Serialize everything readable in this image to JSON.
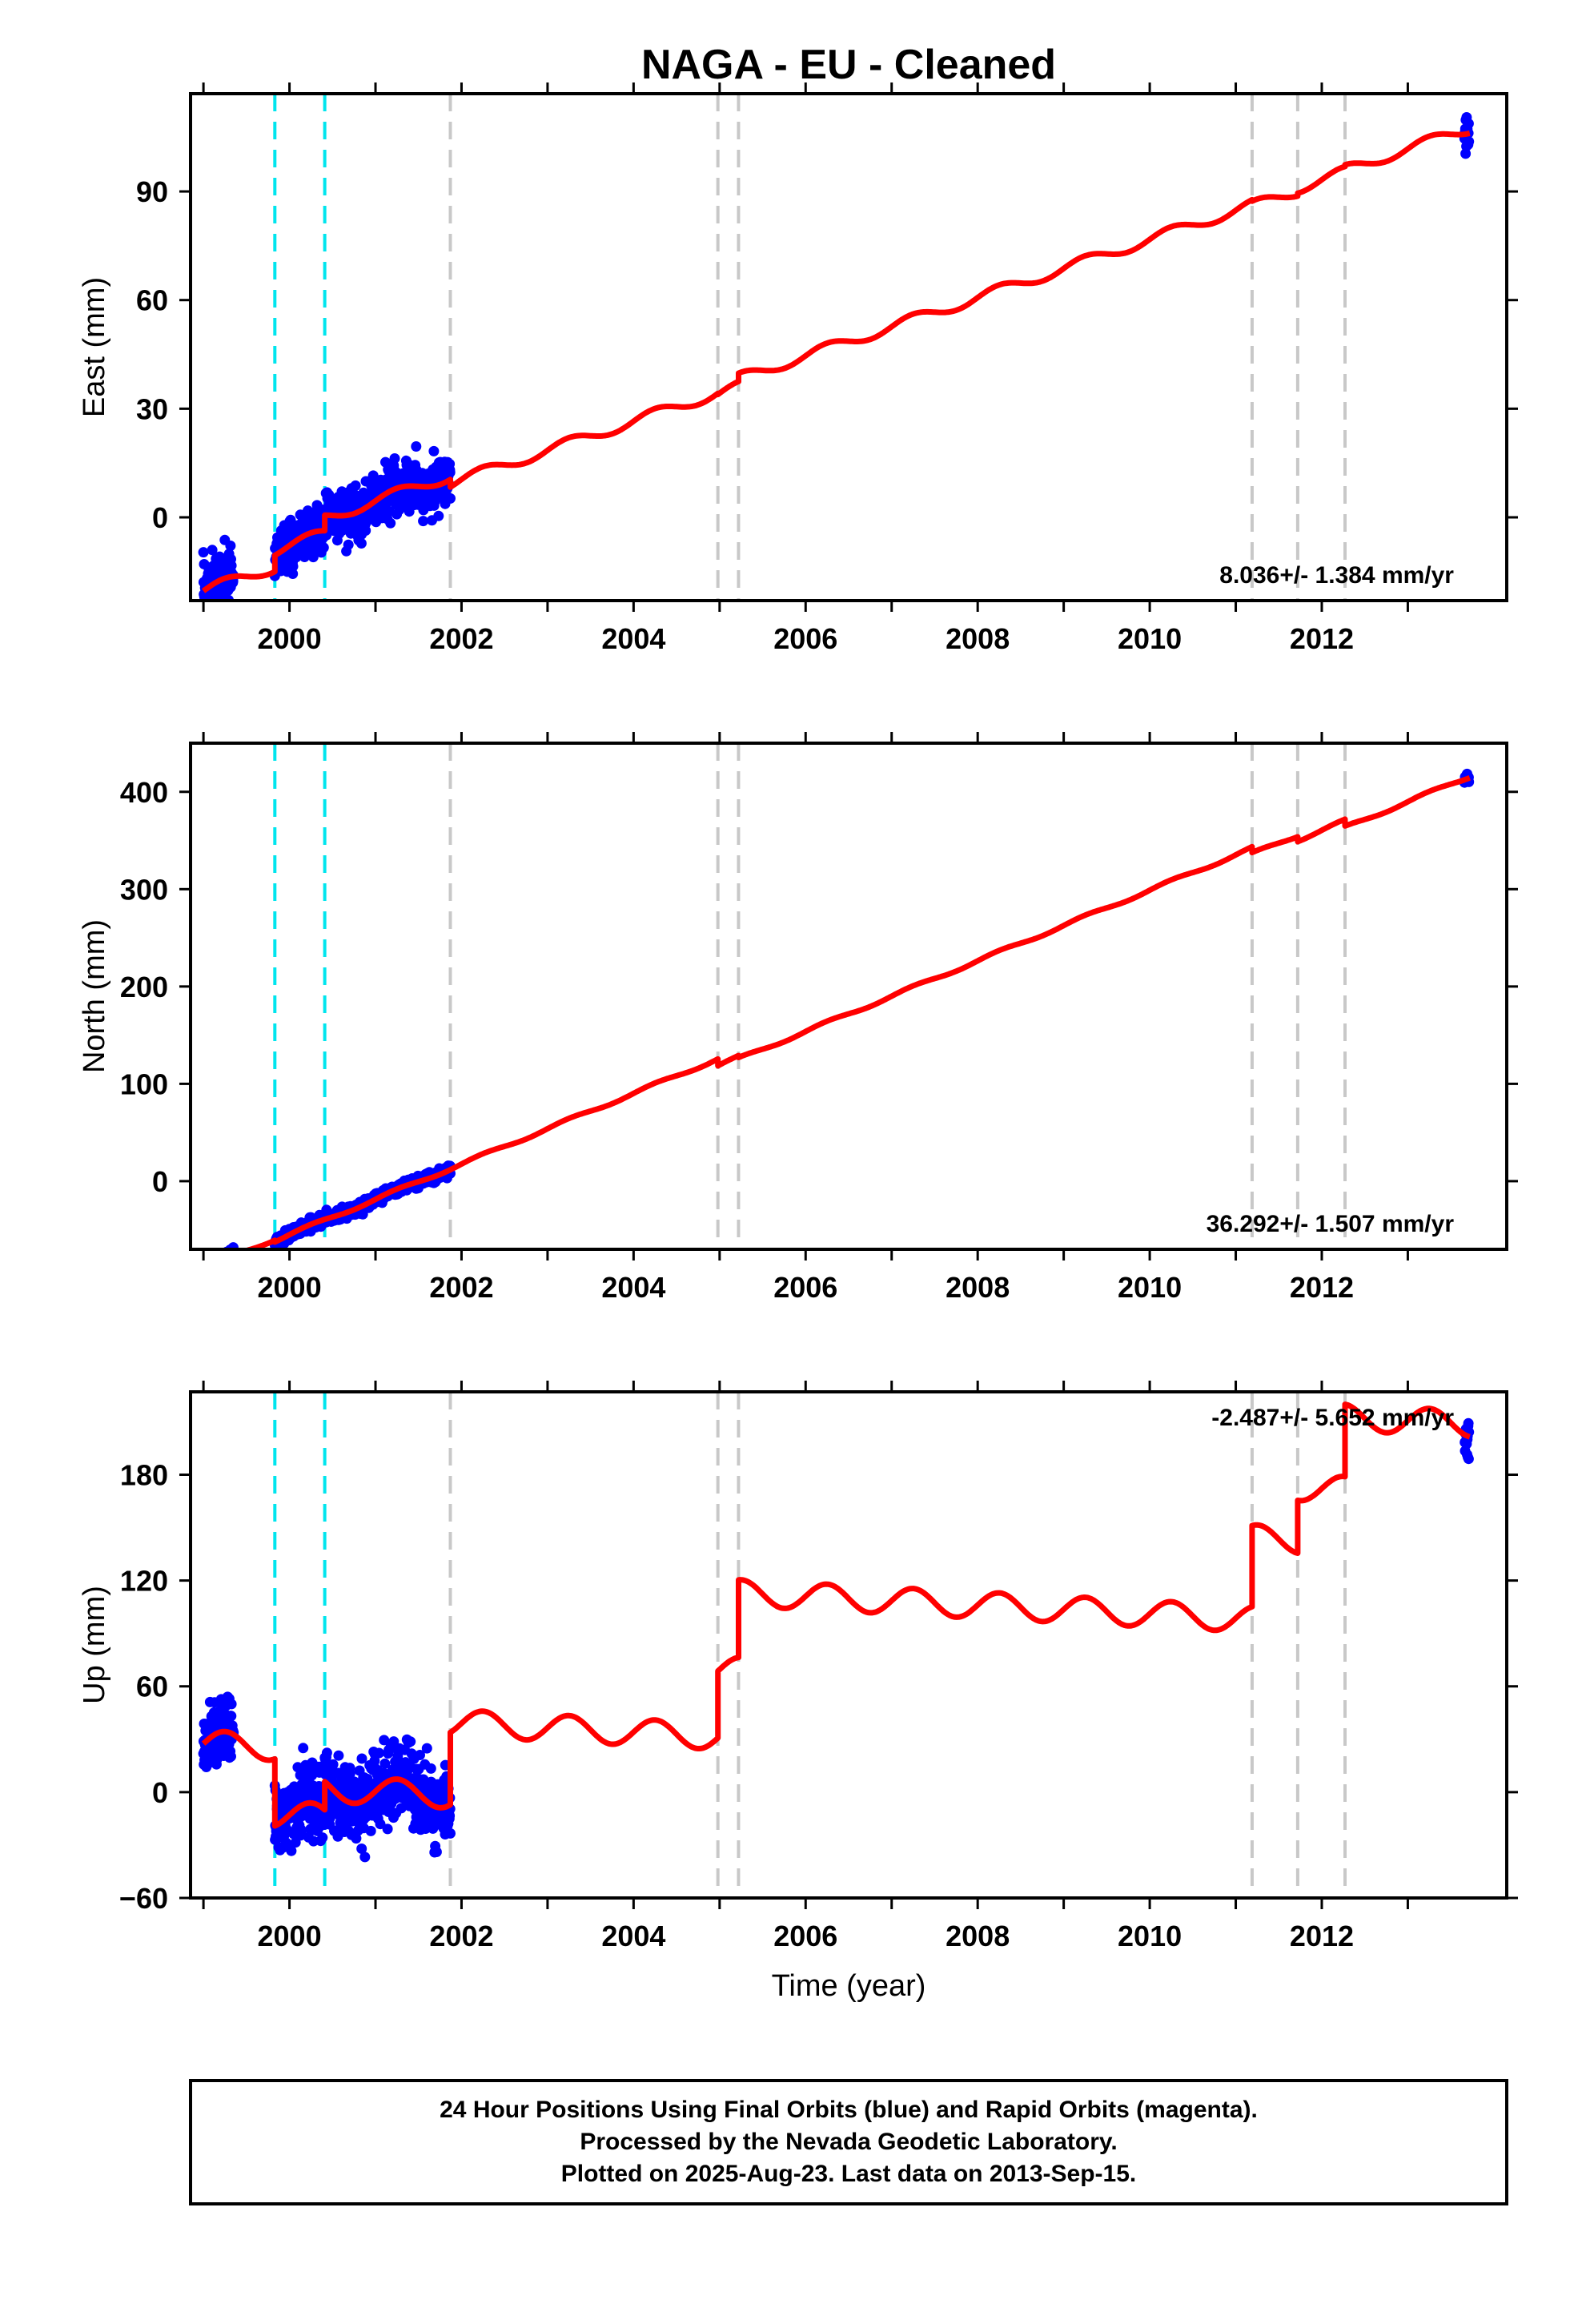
{
  "chart_data": {
    "type": "scatter",
    "title": "NAGA  - EU - Cleaned",
    "xlabel": "Time (year)",
    "xlim": [
      1998.85,
      2014.15
    ],
    "xticks": [
      2000,
      2002,
      2004,
      2006,
      2008,
      2010,
      2012
    ],
    "xtick_labels": [
      "2000",
      "2002",
      "2004",
      "2006",
      "2008",
      "2010",
      "2012"
    ],
    "grid": false,
    "colors": {
      "data": "#0000ff",
      "model": "#ff0000",
      "antenna_change": "#00e5ee",
      "equipment_change": "#c8c8c8"
    },
    "antenna_change_years": [
      1999.83,
      2000.41
    ],
    "equipment_change_years": [
      2001.87,
      2004.98,
      2005.22,
      2011.19,
      2011.72,
      2012.27
    ],
    "panels": [
      {
        "key": "east",
        "ylabel": "East (mm)",
        "ylim": [
          -23,
          117
        ],
        "yticks": [
          0,
          30,
          60,
          90
        ],
        "ytick_labels": [
          "0",
          "30",
          "60",
          "90"
        ],
        "rate_label": "8.036+/- 1.384 mm/yr",
        "rate_position": "bottom-right",
        "model": {
          "rate": 8.036,
          "seasonal_amp": 1.5,
          "segments": [
            {
              "start": 1999.0,
              "end": 1999.83,
              "offset": -12.3
            },
            {
              "start": 1999.83,
              "end": 2000.41,
              "offset": -7.8
            },
            {
              "start": 2000.41,
              "end": 2001.87,
              "offset": -3.5
            },
            {
              "start": 2001.87,
              "end": 2004.98,
              "offset": -5.6
            },
            {
              "start": 2004.98,
              "end": 2005.22,
              "offset": -5.9
            },
            {
              "start": 2005.22,
              "end": 2011.19,
              "offset": -3.6
            },
            {
              "start": 2011.19,
              "end": 2011.72,
              "offset": -4.0
            },
            {
              "start": 2011.72,
              "end": 2012.27,
              "offset": -3.2
            },
            {
              "start": 2012.27,
              "end": 2013.72,
              "offset": -2.7
            }
          ]
        },
        "observations": [
          {
            "start": 1999.0,
            "end": 1999.35,
            "scatter": 4.2
          },
          {
            "start": 1999.83,
            "end": 2001.87,
            "scatter": 3.3
          },
          {
            "start": 2013.66,
            "end": 2013.71,
            "scatter": 2.8
          }
        ]
      },
      {
        "key": "north",
        "ylabel": "North (mm)",
        "ylim": [
          -70,
          450
        ],
        "yticks": [
          0,
          100,
          200,
          300,
          400
        ],
        "ytick_labels": [
          "0",
          "100",
          "200",
          "300",
          "400"
        ],
        "rate_label": "36.292+/- 1.507 mm/yr",
        "rate_position": "bottom-right",
        "model": {
          "rate": 36.292,
          "seasonal_amp": 1.6,
          "segments": [
            {
              "start": 1999.0,
              "end": 1999.83,
              "offset": -53.2
            },
            {
              "start": 1999.83,
              "end": 2000.41,
              "offset": -55.0
            },
            {
              "start": 2000.41,
              "end": 2001.87,
              "offset": -55.0
            },
            {
              "start": 2001.87,
              "end": 2004.98,
              "offset": -55.0
            },
            {
              "start": 2004.98,
              "end": 2005.22,
              "offset": -62.0
            },
            {
              "start": 2005.22,
              "end": 2011.19,
              "offset": -64.0
            },
            {
              "start": 2011.19,
              "end": 2011.72,
              "offset": -70.0
            },
            {
              "start": 2011.72,
              "end": 2012.27,
              "offset": -75.0
            },
            {
              "start": 2012.27,
              "end": 2013.72,
              "offset": -82.0
            }
          ]
        },
        "observations": [
          {
            "start": 1999.0,
            "end": 1999.35,
            "scatter": 3.0
          },
          {
            "start": 1999.83,
            "end": 2001.87,
            "scatter": 2.8
          },
          {
            "start": 2013.66,
            "end": 2013.71,
            "scatter": 2.0
          }
        ]
      },
      {
        "key": "up",
        "ylabel": "Up (mm)",
        "ylim": [
          -60,
          227
        ],
        "yticks": [
          -60,
          0,
          60,
          120,
          180
        ],
        "ytick_labels": [
          "−60",
          "0",
          "60",
          "120",
          "180"
        ],
        "rate_label": "-2.487+/- 5.652 mm/yr",
        "rate_position": "top-right",
        "model": {
          "rate": -2.487,
          "seasonal_amp": 7.5,
          "segments": [
            {
              "start": 1999.0,
              "end": 1999.83,
              "offset": 25.0
            },
            {
              "start": 1999.83,
              "end": 2000.41,
              "offset": -13.0
            },
            {
              "start": 2000.41,
              "end": 2001.87,
              "offset": 3.0
            },
            {
              "start": 2001.87,
              "end": 2004.98,
              "offset": 44.0
            },
            {
              "start": 2004.98,
              "end": 2005.22,
              "offset": 82.0
            },
            {
              "start": 2005.22,
              "end": 2011.19,
              "offset": 126.0
            },
            {
              "start": 2011.19,
              "end": 2011.72,
              "offset": 172.0
            },
            {
              "start": 2011.72,
              "end": 2012.27,
              "offset": 202.0
            },
            {
              "start": 2012.27,
              "end": 2013.72,
              "offset": 243.0
            }
          ]
        },
        "observations": [
          {
            "start": 1999.0,
            "end": 1999.35,
            "scatter": 9.0
          },
          {
            "start": 1999.83,
            "end": 2001.87,
            "scatter": 10.0
          },
          {
            "start": 2013.66,
            "end": 2013.71,
            "scatter": 6.0
          }
        ]
      }
    ],
    "footer_lines": [
      "24 Hour Positions Using Final Orbits (blue) and Rapid Orbits (magenta).",
      "Processed by the Nevada Geodetic Laboratory.",
      "Plotted on 2025-Aug-23. Last data on 2013-Sep-15."
    ]
  }
}
